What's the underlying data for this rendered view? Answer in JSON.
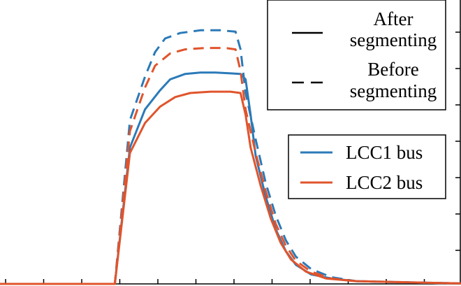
{
  "chart_data": {
    "type": "line",
    "title": "",
    "xlabel": "",
    "ylabel": "",
    "xlim": [
      0,
      1
    ],
    "ylim": [
      0,
      1
    ],
    "grid": false,
    "legends": [
      {
        "placement": "top-right",
        "entries": [
          {
            "label_lines": [
              "After",
              "segmenting"
            ],
            "style": "solid"
          },
          {
            "label_lines": [
              "Before",
              "segmenting"
            ],
            "style": "dashed"
          }
        ]
      },
      {
        "placement": "right",
        "entries": [
          {
            "label": "LCC1 bus",
            "color": "#2b7ab8"
          },
          {
            "label": "LCC2 bus",
            "color": "#e0542c"
          }
        ]
      }
    ],
    "series": [
      {
        "name": "LCC1 bus",
        "variant": "After segmenting",
        "color": "#2b7ab8",
        "style": "solid",
        "points": [
          [
            0.0,
            0
          ],
          [
            0.27,
            0
          ],
          [
            0.3,
            0.5
          ],
          [
            0.33,
            0.64
          ],
          [
            0.36,
            0.71
          ],
          [
            0.38,
            0.75
          ],
          [
            0.41,
            0.77
          ],
          [
            0.44,
            0.775
          ],
          [
            0.47,
            0.775
          ],
          [
            0.5,
            0.772
          ],
          [
            0.52,
            0.77
          ],
          [
            0.53,
            0.75
          ],
          [
            0.54,
            0.62
          ],
          [
            0.55,
            0.47
          ],
          [
            0.57,
            0.32
          ],
          [
            0.59,
            0.2
          ],
          [
            0.61,
            0.12
          ],
          [
            0.63,
            0.07
          ],
          [
            0.66,
            0.035
          ],
          [
            0.7,
            0.02
          ],
          [
            0.75,
            0.01
          ],
          [
            1.0,
            0
          ]
        ]
      },
      {
        "name": "LCC1 bus",
        "variant": "Before segmenting",
        "color": "#2b7ab8",
        "style": "dashed",
        "points": [
          [
            0.0,
            0
          ],
          [
            0.27,
            0
          ],
          [
            0.3,
            0.6
          ],
          [
            0.33,
            0.76
          ],
          [
            0.35,
            0.85
          ],
          [
            0.37,
            0.9
          ],
          [
            0.4,
            0.92
          ],
          [
            0.44,
            0.93
          ],
          [
            0.48,
            0.93
          ],
          [
            0.51,
            0.925
          ],
          [
            0.52,
            0.86
          ],
          [
            0.53,
            0.7
          ],
          [
            0.55,
            0.53
          ],
          [
            0.57,
            0.37
          ],
          [
            0.59,
            0.25
          ],
          [
            0.61,
            0.16
          ],
          [
            0.63,
            0.1
          ],
          [
            0.66,
            0.055
          ],
          [
            0.7,
            0.025
          ],
          [
            0.75,
            0.01
          ],
          [
            1.0,
            0
          ]
        ]
      },
      {
        "name": "LCC2 bus",
        "variant": "After segmenting",
        "color": "#e0542c",
        "style": "solid",
        "points": [
          [
            0.0,
            0
          ],
          [
            0.27,
            0
          ],
          [
            0.3,
            0.48
          ],
          [
            0.33,
            0.59
          ],
          [
            0.36,
            0.65
          ],
          [
            0.39,
            0.685
          ],
          [
            0.42,
            0.7
          ],
          [
            0.46,
            0.705
          ],
          [
            0.5,
            0.705
          ],
          [
            0.52,
            0.7
          ],
          [
            0.53,
            0.62
          ],
          [
            0.54,
            0.5
          ],
          [
            0.56,
            0.36
          ],
          [
            0.58,
            0.24
          ],
          [
            0.6,
            0.15
          ],
          [
            0.62,
            0.09
          ],
          [
            0.65,
            0.045
          ],
          [
            0.69,
            0.02
          ],
          [
            0.75,
            0.01
          ],
          [
            1.0,
            0
          ]
        ]
      },
      {
        "name": "LCC2 bus",
        "variant": "Before segmenting",
        "color": "#e0542c",
        "style": "dashed",
        "points": [
          [
            0.0,
            0
          ],
          [
            0.27,
            0
          ],
          [
            0.3,
            0.56
          ],
          [
            0.33,
            0.72
          ],
          [
            0.35,
            0.8
          ],
          [
            0.38,
            0.845
          ],
          [
            0.41,
            0.86
          ],
          [
            0.45,
            0.865
          ],
          [
            0.49,
            0.865
          ],
          [
            0.51,
            0.86
          ],
          [
            0.52,
            0.78
          ],
          [
            0.53,
            0.64
          ],
          [
            0.55,
            0.48
          ],
          [
            0.57,
            0.34
          ],
          [
            0.59,
            0.22
          ],
          [
            0.61,
            0.14
          ],
          [
            0.63,
            0.085
          ],
          [
            0.66,
            0.045
          ],
          [
            0.7,
            0.02
          ],
          [
            0.75,
            0.01
          ],
          [
            1.0,
            0
          ]
        ]
      }
    ]
  }
}
